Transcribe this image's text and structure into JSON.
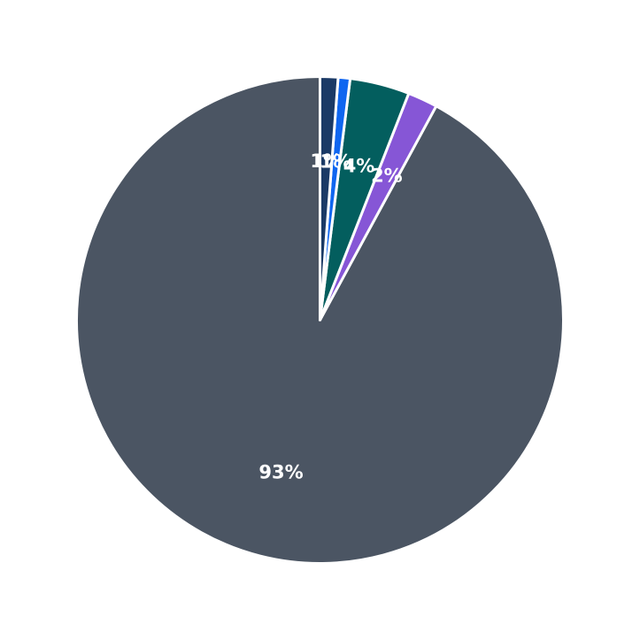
{
  "chart_data": {
    "type": "pie",
    "start_angle_deg": 0,
    "direction": "counterclockwise",
    "slices": [
      {
        "label": "93%",
        "value": 93,
        "color": "#4b5563"
      },
      {
        "label": "2%",
        "value": 2,
        "color": "#8656d6"
      },
      {
        "label": "4%",
        "value": 4,
        "color": "#035e5e"
      },
      {
        "label": "1%",
        "value": 0.8,
        "color": "#0f66f0"
      },
      {
        "label": "1%",
        "value": 1.2,
        "color": "#1b3a66"
      }
    ]
  }
}
